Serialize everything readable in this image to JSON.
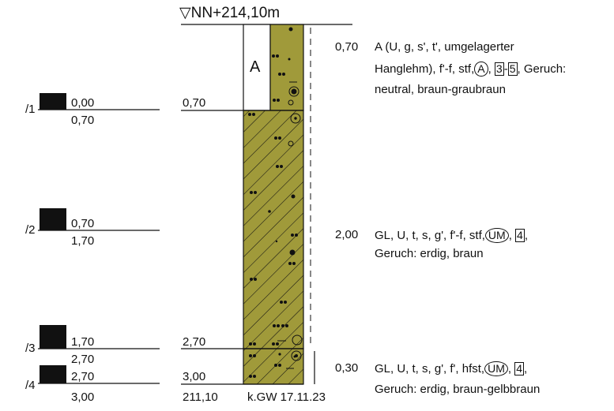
{
  "header": {
    "triangle_symbol": "▽",
    "level_label": "NN+214,10m"
  },
  "column_label": "A",
  "depth_labels": {
    "d1": "0,70",
    "d2": "2,70",
    "d3": "3,00",
    "bottom_level": "211,10",
    "groundwater": "k.GW 17.11.23"
  },
  "samples": [
    {
      "id": "/1",
      "from": "0,00",
      "to": "0,70"
    },
    {
      "id": "/2",
      "from": "0,70",
      "to": "1,70"
    },
    {
      "id": "/3",
      "from": "1,70",
      "to": "2,70"
    },
    {
      "id": "/4",
      "from": "2,70",
      "to": "3,00"
    }
  ],
  "layers": [
    {
      "thickness": "0,70",
      "line1_a": "A (U, g, s', t', umgelagerter",
      "line2_a": "Hanglehm), f'-f, stf,",
      "circle": "A",
      "box": "3",
      "box2": "5",
      "line2_b": ", Geruch:",
      "line3": "neutral, braun-graubraun"
    },
    {
      "thickness": "2,00",
      "line1_a": "GL, U, t, s, g', f'-f, stf,",
      "circle": "UM",
      "box": "4",
      "line2": "Geruch: erdig, braun"
    },
    {
      "thickness": "0,30",
      "line1_a": "GL, U, t, s, g', f', hfst,",
      "circle": "UM",
      "box": "4",
      "line2": "Geruch: erdig, braun-gelbbraun"
    }
  ],
  "colors": {
    "soil_fill": "#a09a3a",
    "line": "#111111"
  }
}
